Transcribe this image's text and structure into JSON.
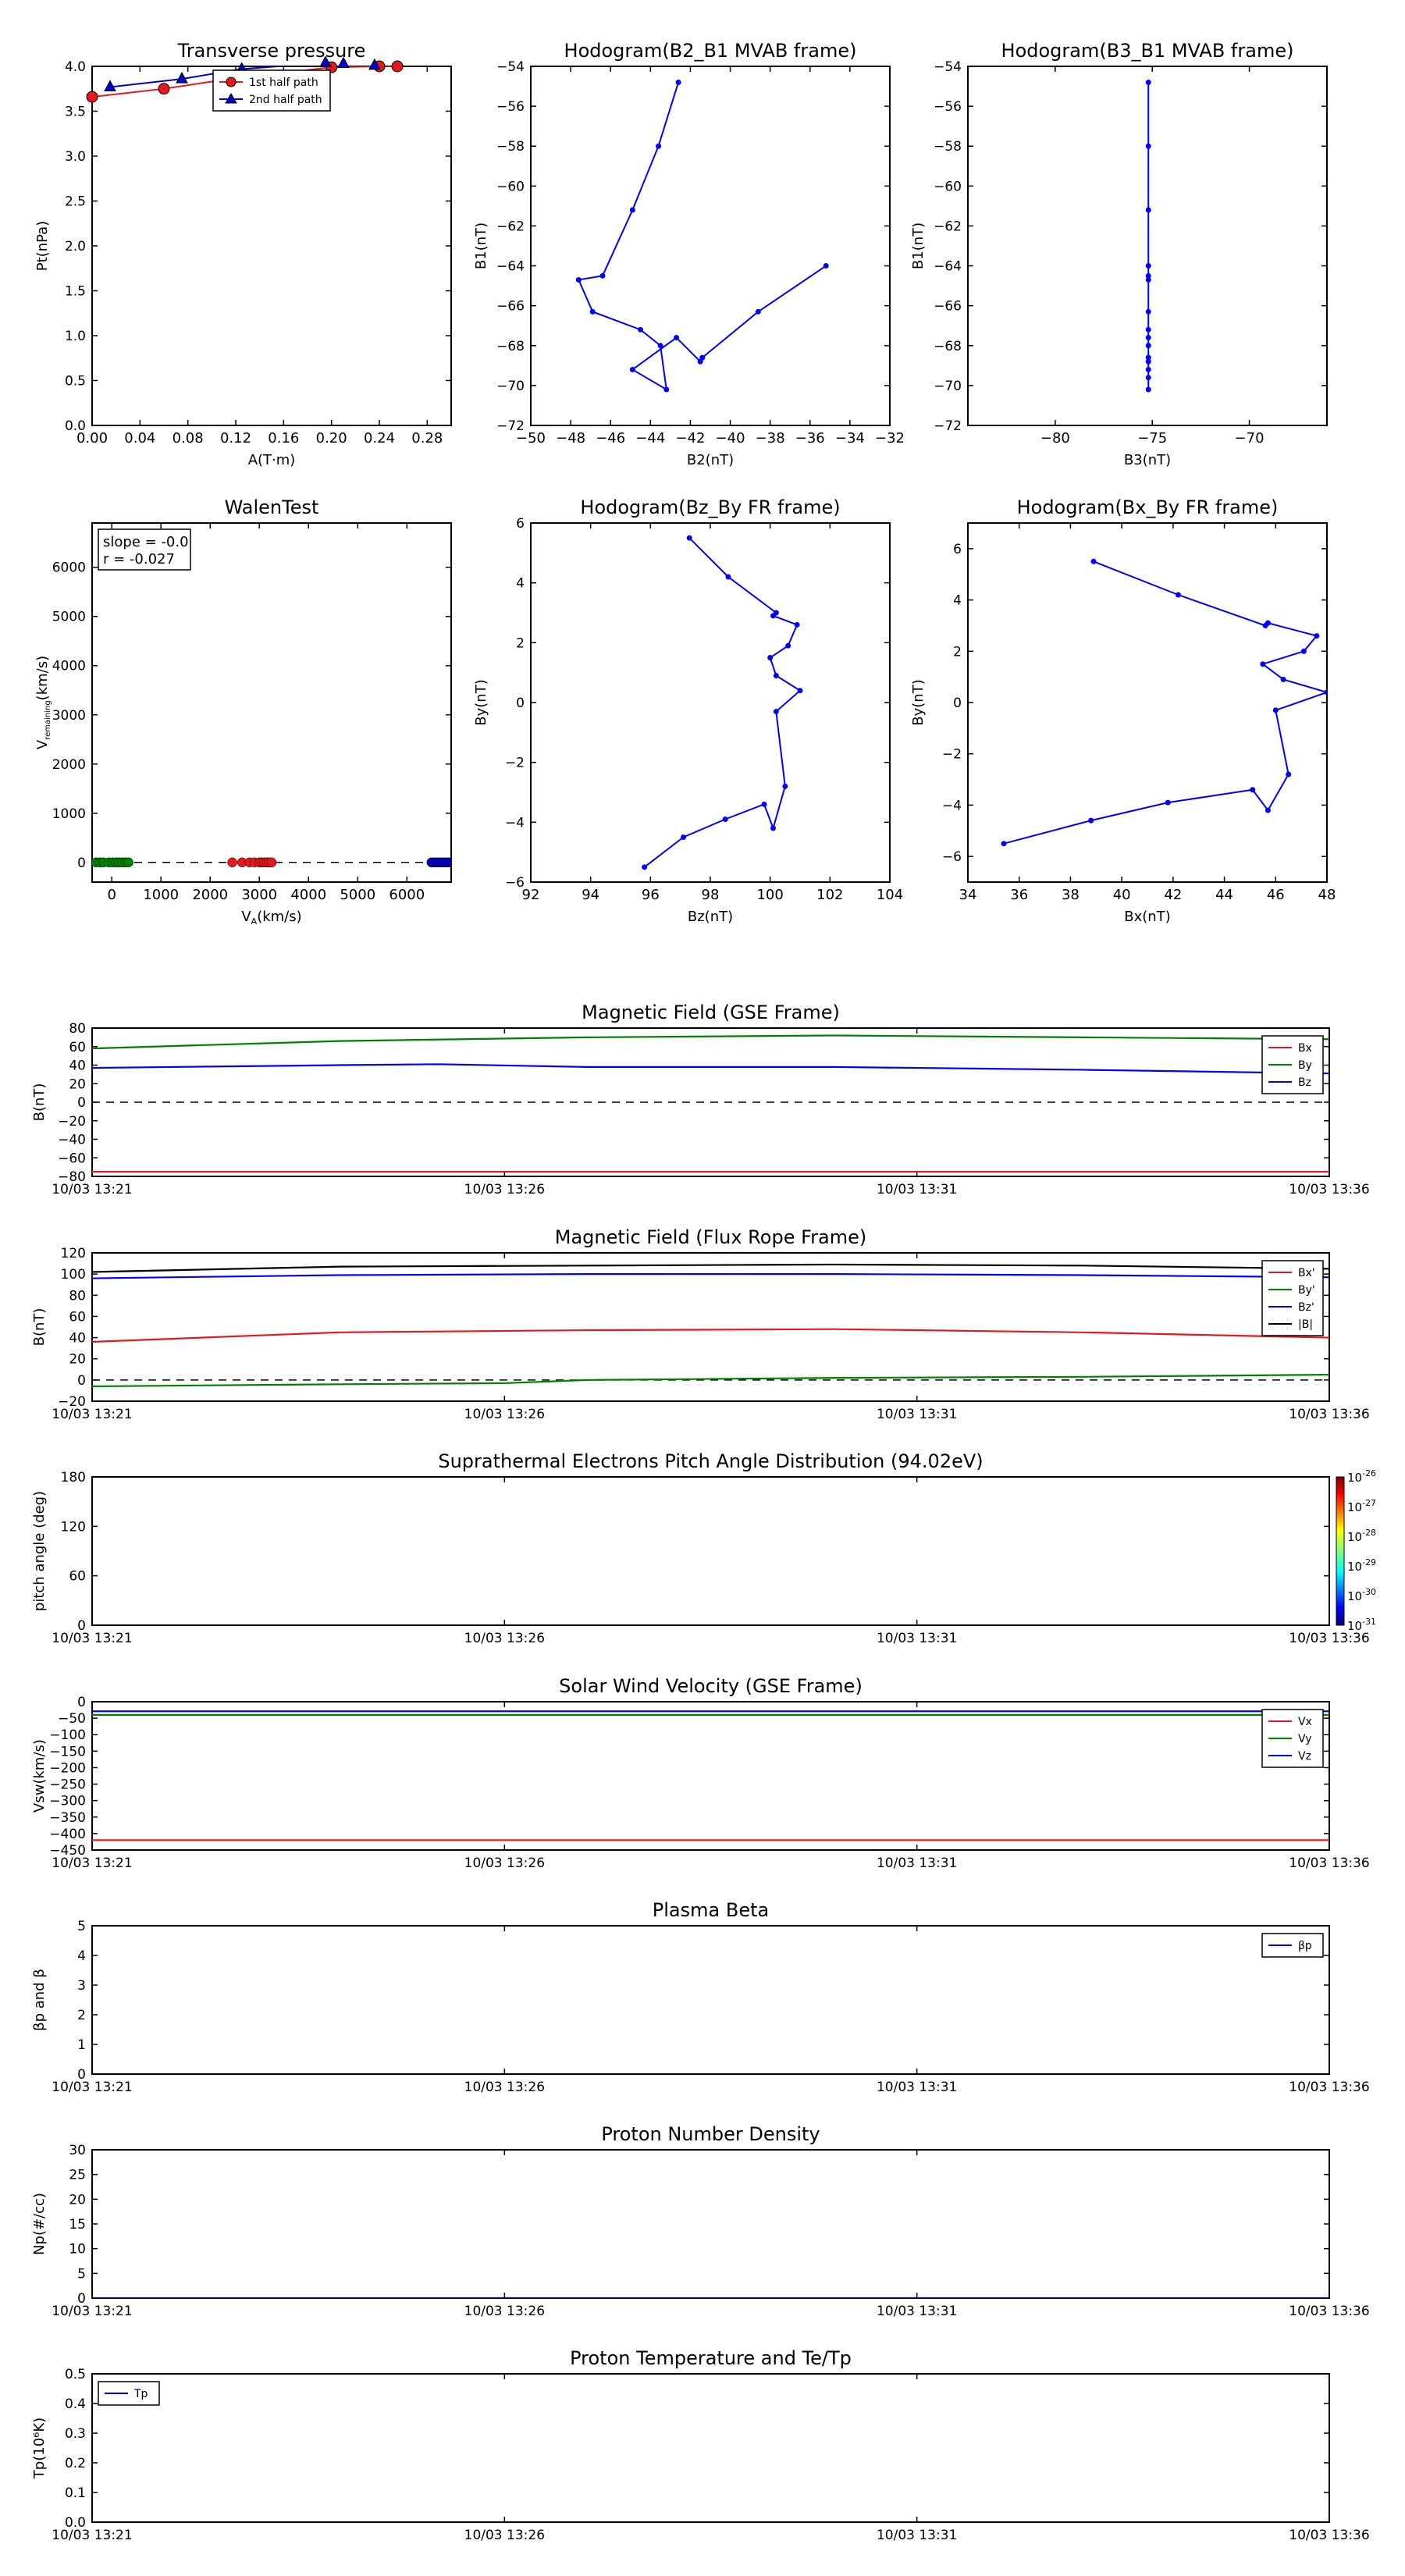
{
  "chart_data": [
    {
      "id": "tp",
      "type": "scatter",
      "title": "Transverse pressure",
      "xlabel": "A(T·m)",
      "ylabel": "Pt(nPa)",
      "xlim": [
        0.0,
        0.3
      ],
      "ylim": [
        0.0,
        4.0
      ],
      "xticks": [
        "0.00",
        "0.04",
        "0.08",
        "0.12",
        "0.16",
        "0.20",
        "0.24",
        "0.28"
      ],
      "xtick_values": [
        0.0,
        0.04,
        0.08,
        0.12,
        0.16,
        0.2,
        0.24,
        0.28
      ],
      "yticks": [
        "0.0",
        "0.5",
        "1.0",
        "1.5",
        "2.0",
        "2.5",
        "3.0",
        "3.5",
        "4.0"
      ],
      "ytick_values": [
        0.0,
        0.5,
        1.0,
        1.5,
        2.0,
        2.5,
        3.0,
        3.5,
        4.0
      ],
      "legend_position": "top-center",
      "series": [
        {
          "name": "1st half path",
          "color": "#e3191c",
          "marker": "circle",
          "points": [
            [
              0.0,
              3.66
            ],
            [
              0.06,
              3.75
            ],
            [
              0.11,
              3.85
            ],
            [
              0.2,
              3.99
            ],
            [
              0.24,
              4.0
            ],
            [
              0.255,
              4.0
            ]
          ]
        },
        {
          "name": "2nd half path",
          "color": "#0000cc",
          "marker": "triangle",
          "points": [
            [
              0.015,
              3.77
            ],
            [
              0.075,
              3.86
            ],
            [
              0.125,
              3.97
            ],
            [
              0.195,
              4.04
            ],
            [
              0.21,
              4.03
            ],
            [
              0.236,
              4.01
            ]
          ]
        }
      ]
    },
    {
      "id": "hodo1",
      "type": "line",
      "title": "Hodogram(B2_B1 MVAB frame)",
      "xlabel": "B2(nT)",
      "ylabel": "B1(nT)",
      "xlim": [
        -50,
        -32
      ],
      "ylim": [
        -72,
        -54
      ],
      "xticks": [
        "−50",
        "−48",
        "−46",
        "−44",
        "−42",
        "−40",
        "−38",
        "−36",
        "−34",
        "−32"
      ],
      "xtick_values": [
        -50,
        -48,
        -46,
        -44,
        -42,
        -40,
        -38,
        -36,
        -34,
        -32
      ],
      "yticks": [
        "−72",
        "−70",
        "−68",
        "−66",
        "−64",
        "−62",
        "−60",
        "−58",
        "−56",
        "−54"
      ],
      "ytick_values": [
        -72,
        -70,
        -68,
        -66,
        -64,
        -62,
        -60,
        -58,
        -56,
        -54
      ],
      "color": "#0000ff",
      "points": [
        [
          -42.6,
          -54.8
        ],
        [
          -43.6,
          -58.0
        ],
        [
          -44.9,
          -61.2
        ],
        [
          -46.4,
          -64.5
        ],
        [
          -47.6,
          -64.7
        ],
        [
          -46.9,
          -66.3
        ],
        [
          -44.5,
          -67.2
        ],
        [
          -43.5,
          -68.0
        ],
        [
          -43.2,
          -70.2
        ],
        [
          -44.9,
          -69.2
        ],
        [
          -42.7,
          -67.6
        ],
        [
          -41.5,
          -68.8
        ],
        [
          -41.4,
          -68.6
        ],
        [
          -38.6,
          -66.3
        ],
        [
          -35.2,
          -64.0
        ]
      ]
    },
    {
      "id": "hodo2",
      "type": "line",
      "title": "Hodogram(B3_B1 MVAB frame)",
      "xlabel": "B3(nT)",
      "ylabel": "B1(nT)",
      "xlim": [
        -84.5,
        -66
      ],
      "ylim": [
        -72,
        -54
      ],
      "xticks": [
        "−80",
        "−75",
        "−70"
      ],
      "xtick_values": [
        -80,
        -75,
        -70
      ],
      "yticks": [
        "−72",
        "−70",
        "−68",
        "−66",
        "−64",
        "−62",
        "−60",
        "−58",
        "−56",
        "−54"
      ],
      "ytick_values": [
        -72,
        -70,
        -68,
        -66,
        -64,
        -62,
        -60,
        -58,
        -56,
        -54
      ],
      "color": "#0000ff",
      "points": [
        [
          -75.2,
          -54.8
        ],
        [
          -75.2,
          -58.0
        ],
        [
          -75.2,
          -61.2
        ],
        [
          -75.2,
          -64.0
        ],
        [
          -75.2,
          -64.5
        ],
        [
          -75.2,
          -64.7
        ],
        [
          -75.2,
          -66.3
        ],
        [
          -75.2,
          -67.2
        ],
        [
          -75.2,
          -67.6
        ],
        [
          -75.2,
          -68.0
        ],
        [
          -75.2,
          -68.6
        ],
        [
          -75.2,
          -68.8
        ],
        [
          -75.2,
          -69.2
        ],
        [
          -75.2,
          -69.6
        ],
        [
          -75.2,
          -70.2
        ]
      ]
    },
    {
      "id": "walen",
      "type": "scatter",
      "title": "WalenTest",
      "xlabel": "V",
      "xlabel_sub": "A",
      "xlabel_tail": "(km/s)",
      "ylabel": "V",
      "ylabel_sub": "remaining",
      "ylabel_tail": "(km/s)",
      "xlim": [
        -400,
        6900
      ],
      "ylim": [
        -400,
        6900
      ],
      "xticks": [
        "0",
        "1000",
        "2000",
        "3000",
        "4000",
        "5000",
        "6000"
      ],
      "xtick_values": [
        0,
        1000,
        2000,
        3000,
        4000,
        5000,
        6000
      ],
      "yticks": [
        "0",
        "1000",
        "2000",
        "3000",
        "4000",
        "5000",
        "6000"
      ],
      "ytick_values": [
        0,
        1000,
        2000,
        3000,
        4000,
        5000,
        6000
      ],
      "annotation": [
        "slope = -0.0",
        "r = -0.027"
      ],
      "dashed_line_y": 0,
      "groups": [
        {
          "color": "#008000",
          "x": [
            -320,
            -240,
            -170,
            -60,
            20,
            90,
            150,
            220,
            280,
            340
          ],
          "y": [
            0,
            0,
            0,
            0,
            0,
            0,
            0,
            0,
            0,
            0
          ]
        },
        {
          "color": "#e3191c",
          "x": [
            2450,
            2650,
            2800,
            2900,
            3000,
            3050,
            3100,
            3150,
            3200,
            3250
          ],
          "y": [
            0,
            0,
            0,
            0,
            0,
            0,
            0,
            0,
            0,
            0
          ]
        },
        {
          "color": "#0000cc",
          "x": [
            6500,
            6550,
            6600,
            6650,
            6700,
            6750,
            6800,
            6850,
            6900,
            6950
          ],
          "y": [
            0,
            0,
            0,
            0,
            0,
            0,
            0,
            0,
            0,
            0
          ]
        }
      ]
    },
    {
      "id": "hodo3",
      "type": "line",
      "title": "Hodogram(Bz_By FR frame)",
      "xlabel": "Bz(nT)",
      "ylabel": "By(nT)",
      "xlim": [
        92,
        104
      ],
      "ylim": [
        -6,
        6
      ],
      "xticks": [
        "92",
        "94",
        "96",
        "98",
        "100",
        "102",
        "104"
      ],
      "xtick_values": [
        92,
        94,
        96,
        98,
        100,
        102,
        104
      ],
      "yticks": [
        "−6",
        "−4",
        "−2",
        "0",
        "2",
        "4",
        "6"
      ],
      "ytick_values": [
        -6,
        -4,
        -2,
        0,
        2,
        4,
        6
      ],
      "color": "#0000ff",
      "points": [
        [
          97.3,
          5.5
        ],
        [
          98.6,
          4.2
        ],
        [
          100.2,
          3.0
        ],
        [
          100.1,
          2.9
        ],
        [
          100.9,
          2.6
        ],
        [
          100.6,
          1.9
        ],
        [
          100.0,
          1.5
        ],
        [
          100.2,
          0.9
        ],
        [
          101.0,
          0.4
        ],
        [
          100.2,
          -0.3
        ],
        [
          100.5,
          -2.8
        ],
        [
          100.1,
          -4.2
        ],
        [
          99.8,
          -3.4
        ],
        [
          98.5,
          -3.9
        ],
        [
          97.1,
          -4.5
        ],
        [
          95.8,
          -5.5
        ]
      ]
    },
    {
      "id": "hodo4",
      "type": "line",
      "title": "Hodogram(Bx_By FR frame)",
      "xlabel": "Bx(nT)",
      "ylabel": "By(nT)",
      "xlim": [
        34,
        48
      ],
      "ylim": [
        -7,
        7
      ],
      "xticks": [
        "34",
        "36",
        "38",
        "40",
        "42",
        "44",
        "46",
        "48"
      ],
      "xtick_values": [
        34,
        36,
        38,
        40,
        42,
        44,
        46,
        48
      ],
      "yticks": [
        "−6",
        "−4",
        "−2",
        "0",
        "2",
        "4",
        "6"
      ],
      "ytick_values": [
        -6,
        -4,
        -2,
        0,
        2,
        4,
        6
      ],
      "color": "#0000ff",
      "points": [
        [
          38.9,
          5.5
        ],
        [
          42.2,
          4.2
        ],
        [
          45.6,
          3.0
        ],
        [
          45.7,
          3.1
        ],
        [
          47.6,
          2.6
        ],
        [
          47.1,
          2.0
        ],
        [
          45.5,
          1.5
        ],
        [
          46.3,
          0.9
        ],
        [
          48.0,
          0.4
        ],
        [
          46.0,
          -0.3
        ],
        [
          46.5,
          -2.8
        ],
        [
          45.7,
          -4.2
        ],
        [
          45.1,
          -3.4
        ],
        [
          41.8,
          -3.9
        ],
        [
          38.8,
          -4.6
        ],
        [
          35.4,
          -5.5
        ]
      ]
    },
    {
      "id": "bgse",
      "type": "line",
      "title": "Magnetic Field (GSE Frame)",
      "ylabel": "B(nT)",
      "xlim": [
        0,
        15
      ],
      "ylim": [
        -80,
        80
      ],
      "xticks": [
        "10/03 13:21",
        "10/03 13:26",
        "10/03 13:31",
        "10/03 13:36"
      ],
      "xtick_values": [
        0,
        5,
        10,
        15
      ],
      "yticks": [
        "−80",
        "−60",
        "−40",
        "−20",
        "0",
        "20",
        "40",
        "60",
        "80"
      ],
      "ytick_values": [
        -80,
        -60,
        -40,
        -20,
        0,
        20,
        40,
        60,
        80
      ],
      "dashed_line_y": 0,
      "legend_position": "right",
      "series": [
        {
          "name": "Bx",
          "color": "#e3191c",
          "x": [
            0,
            3,
            6,
            9,
            12,
            15
          ],
          "y": [
            -75,
            -75,
            -75,
            -75,
            -75,
            -75
          ]
        },
        {
          "name": "By",
          "color": "#008000",
          "x": [
            0,
            3,
            6,
            9,
            12,
            15
          ],
          "y": [
            58,
            66,
            70,
            72,
            70,
            68
          ]
        },
        {
          "name": "Bz",
          "color": "#0000ff",
          "x": [
            0,
            3,
            4.2,
            6,
            9,
            12,
            15
          ],
          "y": [
            37,
            40,
            41,
            38,
            38,
            35,
            31
          ]
        }
      ]
    },
    {
      "id": "bfr",
      "type": "line",
      "title": "Magnetic Field (Flux Rope Frame)",
      "ylabel": "B(nT)",
      "xlim": [
        0,
        15
      ],
      "ylim": [
        -20,
        120
      ],
      "xticks": [
        "10/03 13:21",
        "10/03 13:26",
        "10/03 13:31",
        "10/03 13:36"
      ],
      "xtick_values": [
        0,
        5,
        10,
        15
      ],
      "yticks": [
        "−20",
        "0",
        "20",
        "40",
        "60",
        "80",
        "100",
        "120"
      ],
      "ytick_values": [
        -20,
        0,
        20,
        40,
        60,
        80,
        100,
        120
      ],
      "dashed_line_y": 0,
      "legend_position": "right",
      "series": [
        {
          "name": "Bx'",
          "color": "#e3191c",
          "x": [
            0,
            3,
            6,
            9,
            12,
            15
          ],
          "y": [
            36,
            45,
            47,
            48,
            45,
            40
          ]
        },
        {
          "name": "By'",
          "color": "#008000",
          "x": [
            0,
            3,
            5,
            6,
            9,
            12,
            15
          ],
          "y": [
            -6,
            -4,
            -3,
            0,
            2,
            3,
            5
          ]
        },
        {
          "name": "Bz'",
          "color": "#0000ff",
          "x": [
            0,
            3,
            6,
            9,
            12,
            15
          ],
          "y": [
            96,
            99,
            100,
            100,
            99,
            97
          ]
        },
        {
          "name": "|B|",
          "color": "#000000",
          "x": [
            0,
            3,
            6,
            9,
            12,
            15
          ],
          "y": [
            102,
            107,
            108,
            109,
            108,
            105
          ]
        }
      ]
    },
    {
      "id": "pad",
      "type": "heatmap",
      "title": "Suprathermal Electrons Pitch Angle Distribution (94.02eV)",
      "ylabel": "pitch angle (deg)",
      "xlim": [
        0,
        15
      ],
      "ylim": [
        0,
        180
      ],
      "xticks": [
        "10/03 13:21",
        "10/03 13:26",
        "10/03 13:31",
        "10/03 13:36"
      ],
      "xtick_values": [
        0,
        5,
        10,
        15
      ],
      "yticks": [
        "0",
        "60",
        "120",
        "180"
      ],
      "ytick_values": [
        0,
        60,
        120,
        180
      ],
      "colorbar_labels": [
        "10",
        "-26",
        "10",
        "-27",
        "10",
        "-28",
        "10",
        "-29",
        "10",
        "-30",
        "10",
        "-31"
      ]
    },
    {
      "id": "vsw",
      "type": "line",
      "title": "Solar Wind Velocity (GSE Frame)",
      "ylabel": "Vsw(km/s)",
      "xlim": [
        0,
        15
      ],
      "ylim": [
        -450,
        0
      ],
      "xticks": [
        "10/03 13:21",
        "10/03 13:26",
        "10/03 13:31",
        "10/03 13:36"
      ],
      "xtick_values": [
        0,
        5,
        10,
        15
      ],
      "yticks": [
        "−450",
        "−400",
        "−350",
        "−300",
        "−250",
        "−200",
        "−150",
        "−100",
        "−50",
        "0"
      ],
      "ytick_values": [
        -450,
        -400,
        -350,
        -300,
        -250,
        -200,
        -150,
        -100,
        -50,
        0
      ],
      "legend_position": "right",
      "series": [
        {
          "name": "Vx",
          "color": "#e3191c",
          "x": [
            0,
            15
          ],
          "y": [
            -420,
            -420
          ]
        },
        {
          "name": "Vy",
          "color": "#008000",
          "x": [
            0,
            15
          ],
          "y": [
            -40,
            -40
          ]
        },
        {
          "name": "Vz",
          "color": "#0000ff",
          "x": [
            0,
            15
          ],
          "y": [
            -29,
            -29
          ]
        }
      ]
    },
    {
      "id": "beta",
      "type": "line",
      "title": "Plasma Beta",
      "ylabel": "βp and β",
      "xlim": [
        0,
        15
      ],
      "ylim": [
        0,
        5
      ],
      "xticks": [
        "10/03 13:21",
        "10/03 13:26",
        "10/03 13:31",
        "10/03 13:36"
      ],
      "xtick_values": [
        0,
        5,
        10,
        15
      ],
      "yticks": [
        "0",
        "1",
        "2",
        "3",
        "4",
        "5"
      ],
      "ytick_values": [
        0,
        1,
        2,
        3,
        4,
        5
      ],
      "legend_position": "top-right",
      "series": [
        {
          "name": "βp",
          "color": "#0000ff",
          "x": [],
          "y": []
        }
      ]
    },
    {
      "id": "np",
      "type": "line",
      "title": "Proton Number Density",
      "ylabel": "Np(#/cc)",
      "xlim": [
        0,
        15
      ],
      "ylim": [
        0,
        30
      ],
      "xticks": [
        "10/03 13:21",
        "10/03 13:26",
        "10/03 13:31",
        "10/03 13:36"
      ],
      "xtick_values": [
        0,
        5,
        10,
        15
      ],
      "yticks": [
        "0",
        "5",
        "10",
        "15",
        "20",
        "25",
        "30"
      ],
      "ytick_values": [
        0,
        5,
        10,
        15,
        20,
        25,
        30
      ],
      "series": [
        {
          "name": "",
          "color": "#0000ff",
          "x": [
            0,
            15
          ],
          "y": [
            0,
            0
          ]
        }
      ]
    },
    {
      "id": "temp",
      "type": "line",
      "title": "Proton Temperature and Te/Tp",
      "ylabel": "Tp(10⁶K)",
      "xlim": [
        0,
        15
      ],
      "ylim": [
        0,
        0.5
      ],
      "xticks": [
        "10/03 13:21",
        "10/03 13:26",
        "10/03 13:31",
        "10/03 13:36"
      ],
      "xtick_values": [
        0,
        5,
        10,
        15
      ],
      "yticks": [
        "0.0",
        "0.1",
        "0.2",
        "0.3",
        "0.4",
        "0.5"
      ],
      "ytick_values": [
        0.0,
        0.1,
        0.2,
        0.3,
        0.4,
        0.5
      ],
      "legend_position": "top-left",
      "series": [
        {
          "name": "Tp",
          "color": "#0000ff",
          "x": [],
          "y": []
        }
      ]
    }
  ]
}
